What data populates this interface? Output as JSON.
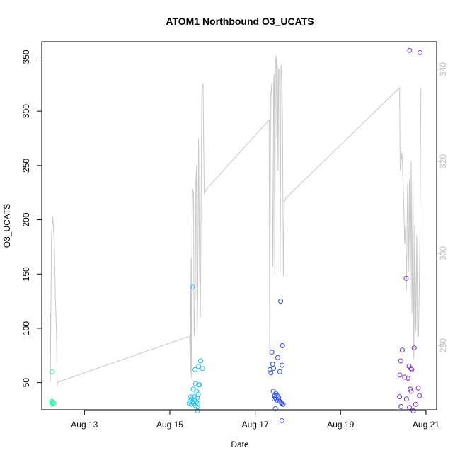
{
  "chart_data": {
    "type": "scatter",
    "title": "ATOM1 Northbound O3_UCATS",
    "xlabel": "Date",
    "ylabel": "O3_UCATS",
    "xlim": [
      "2016-08-12 00:00",
      "2016-08-21 06:00"
    ],
    "ylim": [
      25,
      364
    ],
    "y2lim": [
      266,
      346
    ],
    "x_ticks": [
      {
        "date": "2016-08-13 00:00",
        "label": "Aug 13"
      },
      {
        "date": "2016-08-15 00:00",
        "label": "Aug 15"
      },
      {
        "date": "2016-08-17 00:00",
        "label": "Aug 17"
      },
      {
        "date": "2016-08-19 00:00",
        "label": "Aug 19"
      },
      {
        "date": "2016-08-21 00:00",
        "label": "Aug 21"
      }
    ],
    "y_ticks": [
      50,
      100,
      150,
      200,
      250,
      300,
      350
    ],
    "y2_ticks": [
      280,
      300,
      320,
      340
    ],
    "colors": {
      "altitude_line": "#c8c8c8",
      "right_axis": "#c0c0c0",
      "frame": "#000000"
    },
    "series": [
      {
        "color": "#3ef0b0",
        "points": [
          [
            "2016-08-12 05:50",
            60
          ],
          [
            "2016-08-12 05:40",
            33
          ],
          [
            "2016-08-12 05:45",
            32
          ],
          [
            "2016-08-12 06:00",
            31
          ],
          [
            "2016-08-12 05:35",
            30
          ],
          [
            "2016-08-12 06:20",
            32
          ],
          [
            "2016-08-12 06:40",
            31
          ],
          [
            "2016-08-12 06:50",
            31
          ]
        ]
      },
      {
        "color": "#20c0f0",
        "points": [
          [
            "2016-08-15 12:50",
            138
          ],
          [
            "2016-08-15 14:10",
            62
          ],
          [
            "2016-08-15 16:10",
            65
          ],
          [
            "2016-08-15 17:20",
            70
          ],
          [
            "2016-08-15 18:20",
            63
          ],
          [
            "2016-08-15 14:30",
            49
          ],
          [
            "2016-08-15 16:10",
            48
          ],
          [
            "2016-08-15 16:40",
            48
          ],
          [
            "2016-08-15 13:10",
            44
          ],
          [
            "2016-08-15 15:00",
            42
          ],
          [
            "2016-08-15 16:00",
            39
          ],
          [
            "2016-08-15 11:50",
            37
          ],
          [
            "2016-08-15 13:40",
            37
          ],
          [
            "2016-08-15 15:20",
            36
          ],
          [
            "2016-08-15 12:20",
            35
          ],
          [
            "2016-08-15 14:00",
            34
          ],
          [
            "2016-08-15 11:20",
            33
          ],
          [
            "2016-08-15 12:40",
            32
          ],
          [
            "2016-08-15 13:30",
            31
          ],
          [
            "2016-08-15 14:50",
            32
          ],
          [
            "2016-08-15 10:50",
            31
          ],
          [
            "2016-08-15 12:00",
            30
          ],
          [
            "2016-08-15 15:40",
            31
          ],
          [
            "2016-08-15 14:20",
            29
          ],
          [
            "2016-08-15 15:10",
            27
          ],
          [
            "2016-08-15 15:30",
            24
          ]
        ]
      },
      {
        "color": "#2a50e8",
        "points": [
          [
            "2016-08-17 14:20",
            125
          ],
          [
            "2016-08-17 15:20",
            84
          ],
          [
            "2016-08-17 09:20",
            78
          ],
          [
            "2016-08-17 12:40",
            73
          ],
          [
            "2016-08-17 09:50",
            67
          ],
          [
            "2016-08-17 15:10",
            66
          ],
          [
            "2016-08-17 08:20",
            62
          ],
          [
            "2016-08-17 10:20",
            63
          ],
          [
            "2016-08-17 13:50",
            60
          ],
          [
            "2016-08-17 08:50",
            59
          ],
          [
            "2016-08-17 10:10",
            42
          ],
          [
            "2016-08-17 11:40",
            40
          ],
          [
            "2016-08-17 11:00",
            38
          ],
          [
            "2016-08-17 12:20",
            38
          ],
          [
            "2016-08-17 11:20",
            36
          ],
          [
            "2016-08-17 13:10",
            36
          ],
          [
            "2016-08-17 10:40",
            35
          ],
          [
            "2016-08-17 12:00",
            34
          ],
          [
            "2016-08-17 13:30",
            33
          ],
          [
            "2016-08-17 14:30",
            32
          ],
          [
            "2016-08-17 14:50",
            31
          ],
          [
            "2016-08-17 15:40",
            30
          ],
          [
            "2016-08-17 11:20",
            26
          ],
          [
            "2016-08-17 15:00",
            15
          ]
        ]
      },
      {
        "color": "#7a30e0",
        "points": [
          [
            "2016-08-20 14:50",
            356
          ],
          [
            "2016-08-20 20:40",
            354
          ],
          [
            "2016-08-20 12:50",
            146
          ],
          [
            "2016-08-20 17:20",
            82
          ],
          [
            "2016-08-20 10:40",
            80
          ],
          [
            "2016-08-20 09:50",
            70
          ],
          [
            "2016-08-20 14:30",
            65
          ],
          [
            "2016-08-20 15:30",
            63
          ],
          [
            "2016-08-20 16:00",
            62
          ],
          [
            "2016-08-20 09:20",
            57
          ],
          [
            "2016-08-20 12:00",
            55
          ],
          [
            "2016-08-20 13:50",
            54
          ],
          [
            "2016-08-20 19:40",
            45
          ],
          [
            "2016-08-20 15:10",
            44
          ],
          [
            "2016-08-20 15:40",
            42
          ],
          [
            "2016-08-20 20:20",
            38
          ],
          [
            "2016-08-20 09:10",
            37
          ],
          [
            "2016-08-20 13:00",
            35
          ],
          [
            "2016-08-20 18:10",
            30
          ],
          [
            "2016-08-20 10:00",
            28
          ],
          [
            "2016-08-20 14:40",
            27
          ],
          [
            "2016-08-20 16:50",
            24
          ]
        ]
      }
    ],
    "line_series": {
      "color": "#c8c8c8",
      "axis": "right",
      "points": [
        [
          "2016-08-12 04:30",
          278
        ],
        [
          "2016-08-12 04:40",
          287
        ],
        [
          "2016-08-12 04:50",
          272
        ],
        [
          "2016-08-12 05:10",
          290
        ],
        [
          "2016-08-12 05:30",
          304
        ],
        [
          "2016-08-12 06:10",
          308
        ],
        [
          "2016-08-12 07:00",
          303
        ],
        [
          "2016-08-12 07:40",
          290
        ],
        [
          "2016-08-12 08:20",
          282
        ],
        [
          "2016-08-12 08:40",
          271
        ],
        [
          "2016-08-12 09:00",
          272
        ],
        [
          "2016-08-15 11:10",
          282
        ],
        [
          "2016-08-15 11:20",
          278
        ],
        [
          "2016-08-15 11:30",
          292
        ],
        [
          "2016-08-15 11:40",
          274
        ],
        [
          "2016-08-15 12:00",
          299
        ],
        [
          "2016-08-15 12:10",
          273
        ],
        [
          "2016-08-15 12:30",
          306
        ],
        [
          "2016-08-15 12:50",
          314
        ],
        [
          "2016-08-15 13:20",
          313
        ],
        [
          "2016-08-15 13:40",
          282
        ],
        [
          "2016-08-15 14:00",
          287
        ],
        [
          "2016-08-15 14:20",
          292
        ],
        [
          "2016-08-15 14:40",
          316
        ],
        [
          "2016-08-15 15:00",
          319
        ],
        [
          "2016-08-15 15:20",
          282
        ],
        [
          "2016-08-15 15:40",
          291
        ],
        [
          "2016-08-15 16:10",
          325
        ],
        [
          "2016-08-15 16:40",
          297
        ],
        [
          "2016-08-15 17:10",
          286
        ],
        [
          "2016-08-15 18:00",
          335
        ],
        [
          "2016-08-15 18:40",
          337
        ],
        [
          "2016-08-15 19:20",
          313
        ],
        [
          "2016-08-15 20:40",
          314
        ],
        [
          "2016-08-17 07:50",
          329
        ],
        [
          "2016-08-17 08:10",
          279
        ],
        [
          "2016-08-17 08:40",
          334
        ],
        [
          "2016-08-17 09:20",
          337
        ],
        [
          "2016-08-17 09:40",
          310
        ],
        [
          "2016-08-17 10:00",
          297
        ],
        [
          "2016-08-17 10:20",
          337
        ],
        [
          "2016-08-17 10:40",
          339
        ],
        [
          "2016-08-17 11:00",
          295
        ],
        [
          "2016-08-17 11:20",
          341
        ],
        [
          "2016-08-17 11:50",
          343
        ],
        [
          "2016-08-17 12:10",
          325
        ],
        [
          "2016-08-17 12:30",
          341
        ],
        [
          "2016-08-17 12:50",
          318
        ],
        [
          "2016-08-17 13:10",
          340
        ],
        [
          "2016-08-17 13:40",
          340
        ],
        [
          "2016-08-17 14:00",
          296
        ],
        [
          "2016-08-17 14:30",
          341
        ],
        [
          "2016-08-17 15:00",
          338
        ],
        [
          "2016-08-17 15:20",
          329
        ],
        [
          "2016-08-17 15:50",
          295
        ],
        [
          "2016-08-17 16:20",
          311
        ],
        [
          "2016-08-17 17:10",
          312
        ],
        [
          "2016-08-20 09:10",
          336
        ],
        [
          "2016-08-20 09:30",
          318
        ],
        [
          "2016-08-20 10:00",
          320
        ],
        [
          "2016-08-20 10:30",
          322
        ],
        [
          "2016-08-20 11:00",
          317
        ],
        [
          "2016-08-20 11:30",
          311
        ],
        [
          "2016-08-20 12:00",
          302
        ],
        [
          "2016-08-20 12:30",
          306
        ],
        [
          "2016-08-20 13:00",
          292
        ],
        [
          "2016-08-20 13:40",
          315
        ],
        [
          "2016-08-20 14:10",
          296
        ],
        [
          "2016-08-20 14:40",
          316
        ],
        [
          "2016-08-20 15:10",
          290
        ],
        [
          "2016-08-20 15:40",
          320
        ],
        [
          "2016-08-20 16:10",
          287
        ],
        [
          "2016-08-20 16:40",
          318
        ],
        [
          "2016-08-20 17:10",
          277
        ],
        [
          "2016-08-20 17:40",
          306
        ],
        [
          "2016-08-20 18:20",
          283
        ],
        [
          "2016-08-20 18:50",
          304
        ],
        [
          "2016-08-20 19:20",
          282
        ],
        [
          "2016-08-20 19:50",
          282
        ],
        [
          "2016-08-20 20:30",
          299
        ],
        [
          "2016-08-20 21:10",
          336
        ]
      ]
    }
  }
}
